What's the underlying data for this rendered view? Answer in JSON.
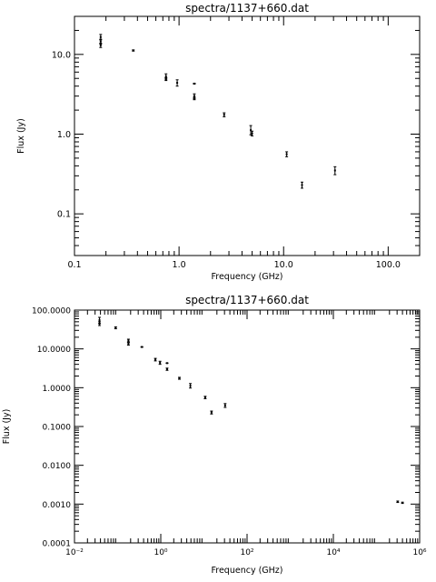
{
  "chart_data": [
    {
      "type": "scatter",
      "title": "spectra/1137+660.dat",
      "xlabel": "Frequency (GHz)",
      "ylabel": "Flux (Jy)",
      "xscale": "log",
      "yscale": "log",
      "xlim": [
        0.1,
        200
      ],
      "ylim": [
        0.03,
        30
      ],
      "xticks": [
        0.1,
        1.0,
        10.0,
        100.0
      ],
      "xtick_labels": [
        "0.1",
        "1.0",
        "10.0",
        "100.0"
      ],
      "yticks": [
        0.1,
        1.0,
        10.0
      ],
      "ytick_labels": [
        "0.1",
        "1.0",
        "10.0"
      ],
      "grid": false,
      "points": [
        {
          "x": 0.178,
          "y": 16.5,
          "ylo": 15.2,
          "yhi": 17.8
        },
        {
          "x": 0.178,
          "y": 14.5,
          "ylo": 13.5,
          "yhi": 15.5
        },
        {
          "x": 0.178,
          "y": 13.0,
          "ylo": 12.2,
          "yhi": 13.8
        },
        {
          "x": 0.365,
          "y": 11.2,
          "ylo": 11.0,
          "yhi": 11.4
        },
        {
          "x": 0.75,
          "y": 5.3,
          "ylo": 4.9,
          "yhi": 5.7
        },
        {
          "x": 0.75,
          "y": 4.9,
          "ylo": 4.7,
          "yhi": 5.1
        },
        {
          "x": 0.96,
          "y": 4.4,
          "ylo": 4.0,
          "yhi": 4.8
        },
        {
          "x": 1.4,
          "y": 4.3,
          "ylo": 4.25,
          "yhi": 4.35
        },
        {
          "x": 1.4,
          "y": 3.0,
          "ylo": 2.8,
          "yhi": 3.2
        },
        {
          "x": 1.4,
          "y": 2.8,
          "ylo": 2.7,
          "yhi": 2.9
        },
        {
          "x": 2.7,
          "y": 1.75,
          "ylo": 1.65,
          "yhi": 1.85
        },
        {
          "x": 4.85,
          "y": 1.12,
          "ylo": 0.98,
          "yhi": 1.28
        },
        {
          "x": 5.0,
          "y": 1.02,
          "ylo": 0.95,
          "yhi": 1.09
        },
        {
          "x": 10.7,
          "y": 0.56,
          "ylo": 0.52,
          "yhi": 0.6
        },
        {
          "x": 15.0,
          "y": 0.23,
          "ylo": 0.21,
          "yhi": 0.25
        },
        {
          "x": 31.0,
          "y": 0.35,
          "ylo": 0.31,
          "yhi": 0.39
        }
      ]
    },
    {
      "type": "scatter",
      "title": "spectra/1137+660.dat",
      "xlabel": "Frequency (GHz)",
      "ylabel": "Flux (Jy)",
      "xscale": "log",
      "yscale": "log",
      "xlim": [
        0.01,
        1000000
      ],
      "ylim": [
        0.0001,
        100
      ],
      "xticks": [
        0.01,
        1,
        100,
        10000,
        1000000
      ],
      "xtick_labels": [
        "10⁻²",
        "10⁰",
        "10²",
        "10⁴",
        "10⁶"
      ],
      "yticks": [
        0.0001,
        0.001,
        0.01,
        0.1,
        1,
        10,
        100
      ],
      "ytick_labels": [
        "0.0001",
        "0.0010",
        "0.0100",
        "0.1000",
        "1.0000",
        "10.0000",
        "100.0000"
      ],
      "grid": false,
      "points": [
        {
          "x": 0.038,
          "y": 55,
          "ylo": 45,
          "yhi": 65
        },
        {
          "x": 0.038,
          "y": 45,
          "ylo": 40,
          "yhi": 50
        },
        {
          "x": 0.09,
          "y": 35,
          "ylo": 33,
          "yhi": 37
        },
        {
          "x": 0.178,
          "y": 16.5,
          "ylo": 15.2,
          "yhi": 17.8
        },
        {
          "x": 0.178,
          "y": 13.5,
          "ylo": 12.5,
          "yhi": 14.5
        },
        {
          "x": 0.365,
          "y": 11.2,
          "ylo": 11.0,
          "yhi": 11.4
        },
        {
          "x": 0.75,
          "y": 5.3,
          "ylo": 4.9,
          "yhi": 5.7
        },
        {
          "x": 0.96,
          "y": 4.4,
          "ylo": 4.0,
          "yhi": 4.8
        },
        {
          "x": 1.4,
          "y": 4.3,
          "ylo": 4.25,
          "yhi": 4.35
        },
        {
          "x": 1.4,
          "y": 3.0,
          "ylo": 2.8,
          "yhi": 3.2
        },
        {
          "x": 2.7,
          "y": 1.75,
          "ylo": 1.65,
          "yhi": 1.85
        },
        {
          "x": 4.85,
          "y": 1.12,
          "ylo": 0.98,
          "yhi": 1.28
        },
        {
          "x": 10.7,
          "y": 0.56,
          "ylo": 0.52,
          "yhi": 0.6
        },
        {
          "x": 15.0,
          "y": 0.23,
          "ylo": 0.21,
          "yhi": 0.25
        },
        {
          "x": 31.0,
          "y": 0.35,
          "ylo": 0.31,
          "yhi": 0.39
        },
        {
          "x": 310000,
          "y": 0.00115,
          "ylo": 0.0011,
          "yhi": 0.0012
        },
        {
          "x": 400000,
          "y": 0.00108,
          "ylo": 0.00104,
          "yhi": 0.00112
        }
      ]
    }
  ]
}
